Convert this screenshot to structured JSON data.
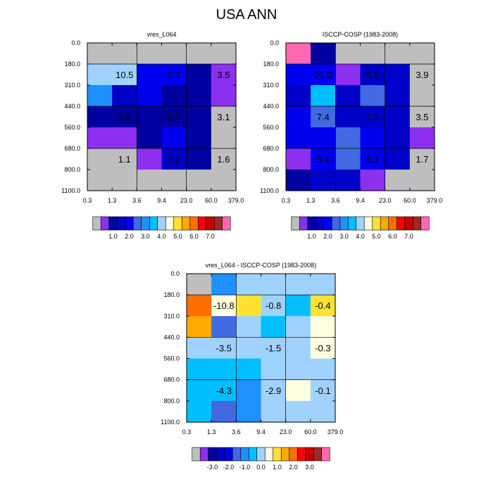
{
  "figure": {
    "title": "USA ANN"
  },
  "colors": {
    "nodata": "#bebebe",
    "palette": [
      "#bebebe",
      "#8c30f0",
      "#0000a0",
      "#0000c8",
      "#0000f0",
      "#4169e1",
      "#1e90ff",
      "#00bfff",
      "#a0d2ff",
      "#ffffe0",
      "#ffe132",
      "#ffaa00",
      "#ff6e00",
      "#ff0000",
      "#c80000",
      "#a02828",
      "#ff69b4"
    ]
  },
  "chart_data": [
    {
      "type": "heatmap",
      "title": "vres_L064",
      "x_ticks": [
        "0.3",
        "1.3",
        "3.6",
        "9.4",
        "23.0",
        "60.0",
        "379.0"
      ],
      "y_ticks": [
        "0.0",
        "180.0",
        "310.0",
        "440.0",
        "560.0",
        "680.0",
        "800.0",
        "1100.0"
      ],
      "cells": [
        [
          0,
          0,
          0,
          0,
          0,
          0
        ],
        [
          8,
          8,
          4,
          4,
          2,
          1
        ],
        [
          6,
          3,
          4,
          2,
          2,
          1
        ],
        [
          2,
          2,
          2,
          2,
          2,
          0
        ],
        [
          1,
          1,
          2,
          4,
          2,
          0
        ],
        [
          0,
          0,
          1,
          3,
          2,
          0
        ],
        [
          0,
          0,
          0,
          0,
          0,
          0
        ]
      ],
      "labels": [
        {
          "text": "10.5",
          "row": 1.5,
          "col": 1
        },
        {
          "text": "5.7",
          "row": 1.5,
          "col": 3
        },
        {
          "text": "3.5",
          "row": 1.5,
          "col": 5
        },
        {
          "text": "3.9",
          "row": 3.5,
          "col": 1
        },
        {
          "text": "5.7",
          "row": 3.5,
          "col": 3
        },
        {
          "text": "3.1",
          "row": 3.5,
          "col": 5
        },
        {
          "text": "1.1",
          "row": 5.5,
          "col": 1
        },
        {
          "text": "3.2",
          "row": 5.5,
          "col": 3
        },
        {
          "text": "1.6",
          "row": 5.5,
          "col": 5
        }
      ],
      "colorbar": {
        "labels": [
          "1.0",
          "2.0",
          "3.0",
          "4.0",
          "5.0",
          "6.0",
          "7.0"
        ]
      }
    },
    {
      "type": "heatmap",
      "title": "ISCCP-COSP (1983-2008)",
      "x_ticks": [
        "0.3",
        "1.3",
        "3.6",
        "9.4",
        "23.0",
        "60.0",
        "379.0"
      ],
      "y_ticks": [
        "0.0",
        "180.0",
        "310.0",
        "440.0",
        "560.0",
        "680.0",
        "800.0",
        "1100.0"
      ],
      "cells": [
        [
          16,
          2,
          0,
          0,
          0,
          0
        ],
        [
          4,
          4,
          1,
          3,
          3,
          0
        ],
        [
          3,
          7,
          3,
          5,
          3,
          0
        ],
        [
          4,
          5,
          3,
          3,
          3,
          0
        ],
        [
          4,
          4,
          5,
          4,
          3,
          1
        ],
        [
          1,
          4,
          5,
          4,
          3,
          0
        ],
        [
          2,
          3,
          3,
          1,
          0,
          0
        ]
      ],
      "labels": [
        {
          "text": "21.3",
          "row": 1.5,
          "col": 1
        },
        {
          "text": "6.5",
          "row": 1.5,
          "col": 3
        },
        {
          "text": "3.9",
          "row": 1.5,
          "col": 5
        },
        {
          "text": "7.4",
          "row": 3.5,
          "col": 1
        },
        {
          "text": "7.2",
          "row": 3.5,
          "col": 3
        },
        {
          "text": "3.5",
          "row": 3.5,
          "col": 5
        },
        {
          "text": "5.4",
          "row": 5.5,
          "col": 1
        },
        {
          "text": "6.1",
          "row": 5.5,
          "col": 3
        },
        {
          "text": "1.7",
          "row": 5.5,
          "col": 5
        }
      ],
      "colorbar": {
        "labels": [
          "1.0",
          "2.0",
          "3.0",
          "4.0",
          "5.0",
          "6.0",
          "7.0"
        ]
      }
    },
    {
      "type": "heatmap",
      "title": "vres_L064 - ISCCP-COSP (1983-2008)",
      "x_ticks": [
        "0.3",
        "1.3",
        "3.6",
        "9.4",
        "23.0",
        "60.0",
        "379.0"
      ],
      "y_ticks": [
        "0.0",
        "180.0",
        "310.0",
        "440.0",
        "560.0",
        "680.0",
        "800.0",
        "1100.0"
      ],
      "cells": [
        [
          0,
          6,
          8,
          8,
          8,
          8
        ],
        [
          12,
          9,
          10,
          8,
          7,
          10
        ],
        [
          11,
          5,
          8,
          7,
          8,
          9
        ],
        [
          8,
          8,
          8,
          8,
          8,
          9
        ],
        [
          7,
          7,
          7,
          8,
          8,
          8
        ],
        [
          7,
          7,
          6,
          8,
          9,
          8
        ],
        [
          7,
          5,
          6,
          8,
          8,
          8
        ]
      ],
      "labels": [
        {
          "text": "-10.8",
          "row": 1.5,
          "col": 1
        },
        {
          "text": "-0.8",
          "row": 1.5,
          "col": 3
        },
        {
          "text": "-0.4",
          "row": 1.5,
          "col": 5
        },
        {
          "text": "-3.5",
          "row": 3.5,
          "col": 1
        },
        {
          "text": "-1.5",
          "row": 3.5,
          "col": 3
        },
        {
          "text": "-0.3",
          "row": 3.5,
          "col": 5
        },
        {
          "text": "-4.3",
          "row": 5.5,
          "col": 1
        },
        {
          "text": "-2.9",
          "row": 5.5,
          "col": 3
        },
        {
          "text": "-0.1",
          "row": 5.5,
          "col": 5
        }
      ],
      "colorbar": {
        "labels": [
          "-3.0",
          "-2.0",
          "-1.0",
          "0.0",
          "1.0",
          "2.0",
          "3.0"
        ]
      }
    }
  ]
}
